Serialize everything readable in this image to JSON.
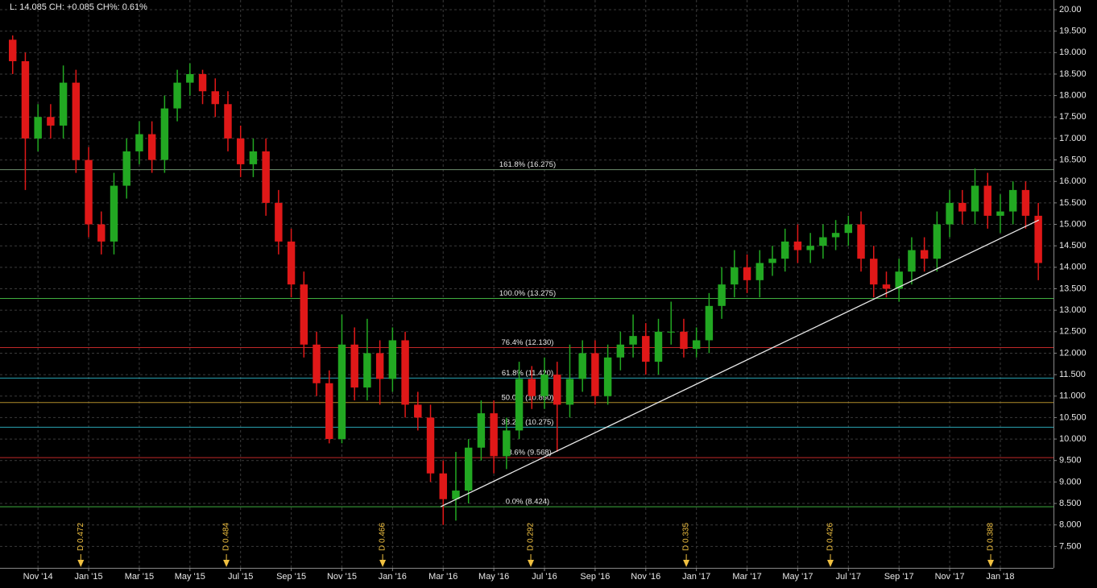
{
  "status": "L: 14.085 CH: +0.085 CH%: 0.61%",
  "chart_data": {
    "type": "candlestick",
    "up_color": "#22a822",
    "down_color": "#e01818",
    "grid": true,
    "xlim": [
      -0.5,
      41.1
    ],
    "ylim": [
      7.0,
      20.225
    ],
    "xticks": [
      {
        "value": 1,
        "label": "Nov '14"
      },
      {
        "value": 3,
        "label": "Jan '15"
      },
      {
        "value": 5,
        "label": "Mar '15"
      },
      {
        "value": 7,
        "label": "May '15"
      },
      {
        "value": 9,
        "label": "Jul '15"
      },
      {
        "value": 11,
        "label": "Sep '15"
      },
      {
        "value": 13,
        "label": "Nov '15"
      },
      {
        "value": 15,
        "label": "Jan '16"
      },
      {
        "value": 17,
        "label": "Mar '16"
      },
      {
        "value": 19,
        "label": "May '16"
      },
      {
        "value": 21,
        "label": "Jul '16"
      },
      {
        "value": 23,
        "label": "Sep '16"
      },
      {
        "value": 25,
        "label": "Nov '16"
      },
      {
        "value": 27,
        "label": "Jan '17"
      },
      {
        "value": 29,
        "label": "Mar '17"
      },
      {
        "value": 31,
        "label": "May '17"
      },
      {
        "value": 33,
        "label": "Jul '17"
      },
      {
        "value": 35,
        "label": "Sep '17"
      },
      {
        "value": 37,
        "label": "Nov '17"
      },
      {
        "value": 39,
        "label": "Jan '18"
      }
    ],
    "yticks": [
      {
        "value": 7.5,
        "label": "7.500"
      },
      {
        "value": 8,
        "label": "8.000"
      },
      {
        "value": 8.5,
        "label": "8.500"
      },
      {
        "value": 9,
        "label": "9.000"
      },
      {
        "value": 9.5,
        "label": "9.500"
      },
      {
        "value": 10,
        "label": "10.000"
      },
      {
        "value": 10.5,
        "label": "10.500"
      },
      {
        "value": 11,
        "label": "11.000"
      },
      {
        "value": 11.5,
        "label": "11.500"
      },
      {
        "value": 12,
        "label": "12.000"
      },
      {
        "value": 12.5,
        "label": "12.500"
      },
      {
        "value": 13,
        "label": "13.000"
      },
      {
        "value": 13.5,
        "label": "13.500"
      },
      {
        "value": 14,
        "label": "14.000"
      },
      {
        "value": 14.5,
        "label": "14.500"
      },
      {
        "value": 15,
        "label": "15.000"
      },
      {
        "value": 15.5,
        "label": "15.500"
      },
      {
        "value": 16,
        "label": "16.000"
      },
      {
        "value": 16.5,
        "label": "16.500"
      },
      {
        "value": 17,
        "label": "17.000"
      },
      {
        "value": 17.5,
        "label": "17.500"
      },
      {
        "value": 18,
        "label": "18.000"
      },
      {
        "value": 18.5,
        "label": "18.500"
      },
      {
        "value": 19,
        "label": "19.000"
      },
      {
        "value": 19.5,
        "label": "19.500"
      },
      {
        "value": 20,
        "label": "20.00"
      }
    ],
    "x": [
      0,
      0.5,
      1,
      1.5,
      2,
      2.5,
      3,
      3.5,
      4,
      4.5,
      5,
      5.5,
      6,
      6.5,
      7,
      7.5,
      8,
      8.5,
      9,
      9.5,
      10,
      10.5,
      11,
      11.5,
      12,
      12.5,
      13,
      13.5,
      14,
      14.5,
      15,
      15.5,
      16,
      16.5,
      17,
      17.5,
      18,
      18.5,
      19,
      19.5,
      20,
      20.5,
      21,
      21.5,
      22,
      22.5,
      23,
      23.5,
      24,
      24.5,
      25,
      25.5,
      26,
      26.5,
      27,
      27.5,
      28,
      28.5,
      29,
      29.5,
      30,
      30.5,
      31,
      31.5,
      32,
      32.5,
      33,
      33.5,
      34,
      34.5,
      35,
      35.5,
      36,
      36.5,
      37,
      37.5,
      38,
      38.5,
      39,
      39.5,
      40,
      40.5
    ],
    "open": [
      19.3,
      18.8,
      17.0,
      17.5,
      17.3,
      18.3,
      16.5,
      15.0,
      14.6,
      15.9,
      16.7,
      17.1,
      16.5,
      17.7,
      18.3,
      18.5,
      18.1,
      17.8,
      17.0,
      16.4,
      16.7,
      15.5,
      14.6,
      13.6,
      12.2,
      11.3,
      10.0,
      12.2,
      11.2,
      12.0,
      11.4,
      12.3,
      10.8,
      10.5,
      9.2,
      8.6,
      8.8,
      9.8,
      10.6,
      9.6,
      10.2,
      11.4,
      11.0,
      11.5,
      10.8,
      11.4,
      12.0,
      11.0,
      11.9,
      12.2,
      12.4,
      11.8,
      12.5,
      12.5,
      12.1,
      12.3,
      13.1,
      13.6,
      14.0,
      13.7,
      14.1,
      14.2,
      14.6,
      14.4,
      14.5,
      14.7,
      14.8,
      15.0,
      14.2,
      13.6,
      13.5,
      13.9,
      14.4,
      14.2,
      15.0,
      15.5,
      15.3,
      15.9,
      15.2,
      15.3,
      15.8,
      15.2
    ],
    "high": [
      19.4,
      19.0,
      17.8,
      17.8,
      18.7,
      18.6,
      16.8,
      15.3,
      16.2,
      17.0,
      17.4,
      17.4,
      18.0,
      18.6,
      18.75,
      18.6,
      18.4,
      18.1,
      17.3,
      17.0,
      17.0,
      15.8,
      14.9,
      13.9,
      12.5,
      11.6,
      12.9,
      12.6,
      12.8,
      12.3,
      12.6,
      12.5,
      11.1,
      10.8,
      9.5,
      9.7,
      10.0,
      10.9,
      10.9,
      10.5,
      11.8,
      11.7,
      11.9,
      11.8,
      12.2,
      12.3,
      12.3,
      12.2,
      12.5,
      12.9,
      12.7,
      12.8,
      13.2,
      12.8,
      12.6,
      13.4,
      14.0,
      14.4,
      14.3,
      14.4,
      14.5,
      14.9,
      15.0,
      14.8,
      15.0,
      15.1,
      15.2,
      15.3,
      14.5,
      13.9,
      14.2,
      14.7,
      14.7,
      15.3,
      15.8,
      15.8,
      16.3,
      16.2,
      15.7,
      16.0,
      16.0,
      15.5
    ],
    "low": [
      18.5,
      15.8,
      16.7,
      17.0,
      17.0,
      16.2,
      14.7,
      14.3,
      14.3,
      15.6,
      16.4,
      16.2,
      16.2,
      17.4,
      18.0,
      17.8,
      17.5,
      16.7,
      16.1,
      16.1,
      15.2,
      14.3,
      13.3,
      11.9,
      11.0,
      9.9,
      9.9,
      10.9,
      10.9,
      10.8,
      11.1,
      10.5,
      10.2,
      9.0,
      8.0,
      8.1,
      8.5,
      9.5,
      9.2,
      9.3,
      10.0,
      10.7,
      10.7,
      9.7,
      10.5,
      11.1,
      10.8,
      10.8,
      11.6,
      11.9,
      11.5,
      11.5,
      12.2,
      11.9,
      11.9,
      12.0,
      12.8,
      13.3,
      13.4,
      13.3,
      13.8,
      13.9,
      14.1,
      14.1,
      14.2,
      14.4,
      14.5,
      13.9,
      13.3,
      13.3,
      13.2,
      13.6,
      13.9,
      13.9,
      14.7,
      15.0,
      15.0,
      14.9,
      14.8,
      15.0,
      14.9,
      13.7
    ],
    "close": [
      18.8,
      17.0,
      17.5,
      17.3,
      18.3,
      16.5,
      15.0,
      14.6,
      15.9,
      16.7,
      17.1,
      16.5,
      17.7,
      18.3,
      18.5,
      18.1,
      17.8,
      17.0,
      16.4,
      16.7,
      15.5,
      14.6,
      13.6,
      12.2,
      11.3,
      10.0,
      12.2,
      11.2,
      12.0,
      11.4,
      12.3,
      10.8,
      10.5,
      9.2,
      8.6,
      8.8,
      9.8,
      10.6,
      9.6,
      10.2,
      11.4,
      11.0,
      11.5,
      10.8,
      11.4,
      12.0,
      11.0,
      11.9,
      12.2,
      12.4,
      11.8,
      12.5,
      12.5,
      12.1,
      12.3,
      13.1,
      13.6,
      14.0,
      13.7,
      14.1,
      14.2,
      14.6,
      14.4,
      14.5,
      14.7,
      14.8,
      15.0,
      14.2,
      13.6,
      13.5,
      13.9,
      14.4,
      14.2,
      15.0,
      15.5,
      15.3,
      15.9,
      15.2,
      15.3,
      15.8,
      15.2,
      14.1
    ],
    "fib_levels": [
      {
        "label": "161.8% (16.275)",
        "value": 16.275,
        "color": "#6f8f6f"
      },
      {
        "label": "100.0% (13.275)",
        "value": 13.275,
        "color": "#3fae3f"
      },
      {
        "label": "76.4% (12.130)",
        "value": 12.13,
        "color": "#c02828"
      },
      {
        "label": "61.8% (11.420)",
        "value": 11.42,
        "color": "#2aa4b4"
      },
      {
        "label": "50.0% (10.850)",
        "value": 10.85,
        "color": "#b08c2a"
      },
      {
        "label": "38.2% (10.275)",
        "value": 10.275,
        "color": "#2aa4b4"
      },
      {
        "label": "23.6% (9.568)",
        "value": 9.568,
        "color": "#c02828"
      },
      {
        "label": "0.0% (8.424)",
        "value": 8.424,
        "color": "#3fae3f"
      }
    ],
    "trendline": {
      "x": [
        16.9,
        40.52
      ],
      "y": [
        8.424,
        15.1
      ],
      "color": "#e8e8e8"
    },
    "dividends": [
      {
        "x": 2.69,
        "label": "D 0.472"
      },
      {
        "x": 8.44,
        "label": "D 0.484"
      },
      {
        "x": 14.61,
        "label": "D 0.466"
      },
      {
        "x": 20.46,
        "label": "D 0.292"
      },
      {
        "x": 26.6,
        "label": "D 0.335"
      },
      {
        "x": 32.29,
        "label": "D 0.426"
      },
      {
        "x": 38.62,
        "label": "D 0.388"
      }
    ],
    "dividend_color": "#f0c040"
  }
}
